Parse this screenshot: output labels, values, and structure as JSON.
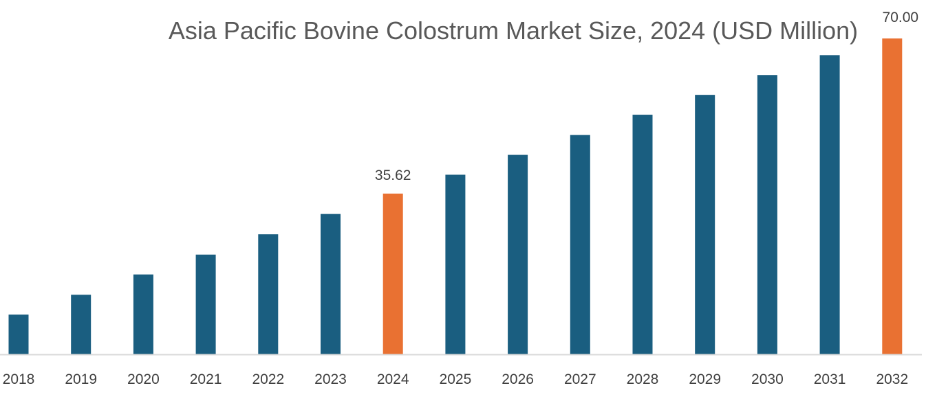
{
  "chart_data": {
    "type": "bar",
    "title": "Asia Pacific Bovine Colostrum Market Size, 2024 (USD Million)",
    "xlabel": "",
    "ylabel": "",
    "categories": [
      "2018",
      "2019",
      "2020",
      "2021",
      "2022",
      "2023",
      "2024",
      "2025",
      "2026",
      "2027",
      "2028",
      "2029",
      "2030",
      "2031",
      "2032"
    ],
    "values": [
      8.8,
      13.2,
      17.7,
      22.1,
      26.6,
      31.1,
      35.62,
      39.8,
      44.2,
      48.6,
      53.1,
      57.5,
      61.9,
      66.3,
      70.0
    ],
    "data_labels": {
      "2024": "35.62",
      "2032": "70.00"
    },
    "highlighted": [
      "2024",
      "2032"
    ],
    "ylim": [
      0,
      70
    ],
    "grid": false,
    "legend": "none",
    "colors": {
      "bar": "#1a5e80",
      "highlight": "#e97132",
      "axis": "#d9d9d9"
    }
  }
}
